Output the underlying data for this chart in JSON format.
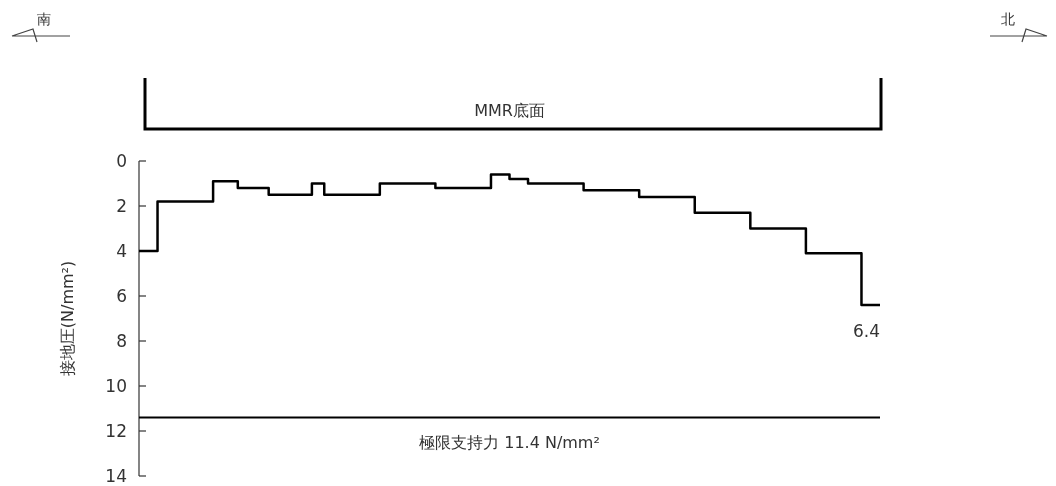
{
  "chart_data": {
    "type": "step",
    "ylabel": "接地圧(N/mm²)",
    "categories": [
      null,
      null,
      null,
      null,
      null,
      null,
      null,
      null,
      null,
      null,
      null,
      null,
      null,
      null,
      null,
      null,
      null,
      null,
      null,
      null,
      null,
      null,
      null,
      null,
      null,
      null,
      null,
      null,
      null,
      null,
      null,
      null,
      null,
      null,
      null,
      null,
      null,
      null,
      null,
      null,
      null,
      null,
      null,
      null,
      null,
      null,
      null,
      null,
      null,
      null,
      null,
      null,
      null,
      null,
      null,
      null,
      null,
      null,
      null,
      null,
      null,
      null,
      null,
      null,
      null,
      null,
      null,
      null,
      null,
      null,
      null,
      null,
      null,
      null,
      null,
      null,
      null,
      null,
      null,
      null,
      null,
      null,
      null,
      null,
      null,
      null,
      null,
      null,
      null,
      null,
      null,
      null,
      null,
      null,
      null,
      null,
      null,
      null,
      null,
      null,
      null,
      null,
      null,
      null,
      null,
      null,
      null,
      null,
      null,
      null,
      null,
      null,
      null,
      null,
      null,
      null,
      null,
      null,
      null,
      null,
      null
    ],
    "values": [
      4.0,
      4.0,
      4.0,
      1.8,
      1.8,
      1.8,
      1.8,
      1.8,
      1.8,
      1.8,
      1.8,
      1.8,
      0.9,
      0.9,
      0.9,
      0.9,
      1.2,
      1.2,
      1.2,
      1.2,
      1.2,
      1.5,
      1.5,
      1.5,
      1.5,
      1.5,
      1.5,
      1.5,
      1.0,
      1.0,
      1.5,
      1.5,
      1.5,
      1.5,
      1.5,
      1.5,
      1.5,
      1.5,
      1.5,
      1.0,
      1.0,
      1.0,
      1.0,
      1.0,
      1.0,
      1.0,
      1.0,
      1.0,
      1.2,
      1.2,
      1.2,
      1.2,
      1.2,
      1.2,
      1.2,
      1.2,
      1.2,
      0.6,
      0.6,
      0.6,
      0.8,
      0.8,
      0.8,
      1.0,
      1.0,
      1.0,
      1.0,
      1.0,
      1.0,
      1.0,
      1.0,
      1.0,
      1.3,
      1.3,
      1.3,
      1.3,
      1.3,
      1.3,
      1.3,
      1.3,
      1.3,
      1.6,
      1.6,
      1.6,
      1.6,
      1.6,
      1.6,
      1.6,
      1.6,
      1.6,
      2.3,
      2.3,
      2.3,
      2.3,
      2.3,
      2.3,
      2.3,
      2.3,
      2.3,
      3.0,
      3.0,
      3.0,
      3.0,
      3.0,
      3.0,
      3.0,
      3.0,
      3.0,
      4.1,
      4.1,
      4.1,
      4.1,
      4.1,
      4.1,
      4.1,
      4.1,
      4.1,
      6.4,
      6.4,
      6.4,
      6.4
    ],
    "color": "#000000",
    "ylim": [
      14,
      0
    ],
    "yticks": [
      0,
      2,
      4,
      6,
      8,
      10,
      12,
      14
    ],
    "tick_labels": "y",
    "ref_lines": [
      {
        "axis": "y",
        "value": 11.4,
        "label": "極限支持力 11.4 N/mm²",
        "color": "#000000"
      }
    ],
    "annotations": [
      "MMR底面",
      "南",
      "北",
      {
        "text": "6.4",
        "y": 6.4
      }
    ]
  }
}
